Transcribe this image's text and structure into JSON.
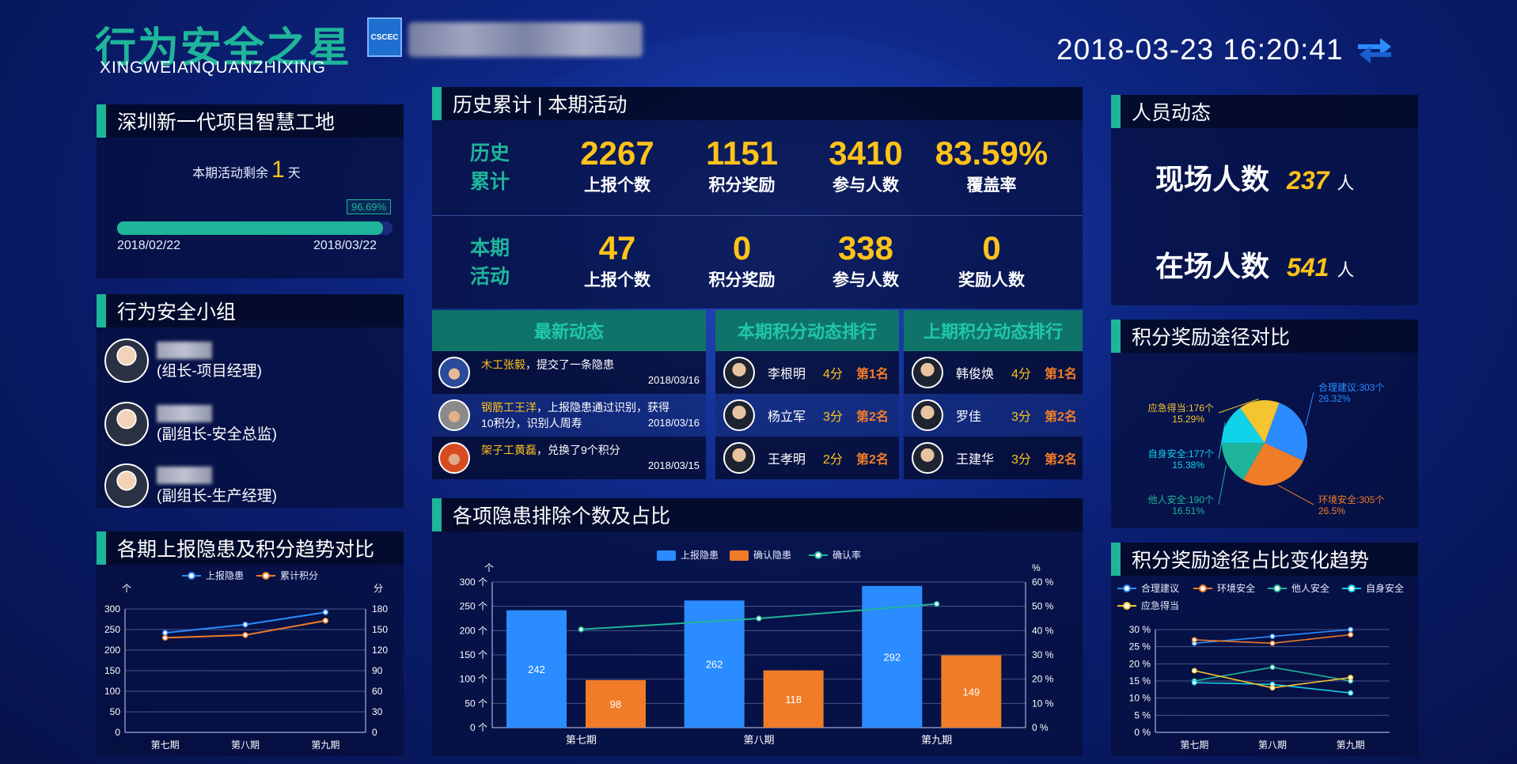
{
  "header": {
    "title": "行为安全之星",
    "subtitle": "XINGWEIANQUANZHIXING",
    "logo_text": "CSCEC",
    "datetime": "2018-03-23 16:20:41"
  },
  "project": {
    "title": "深圳新一代项目智慧工地",
    "remaining_prefix": "本期活动剩余",
    "remaining_days": "1",
    "remaining_suffix": "天",
    "progress_pct": "96.69%",
    "progress_value": 0.9669,
    "start_date": "2018/02/22",
    "end_date": "2018/03/22"
  },
  "group": {
    "title": "行为安全小组",
    "members": [
      {
        "role": "(组长-项目经理)"
      },
      {
        "role": "(副组长-安全总监)"
      },
      {
        "role": "(副组长-生产经理)"
      }
    ]
  },
  "history": {
    "title": "历史累计 | 本期活动",
    "hist_label_1": "历史",
    "hist_label_2": "累计",
    "hist_stats": [
      {
        "value": "2267",
        "label": "上报个数"
      },
      {
        "value": "1151",
        "label": "积分奖励"
      },
      {
        "value": "3410",
        "label": "参与人数"
      },
      {
        "value": "83.59%",
        "label": "覆盖率"
      }
    ],
    "cur_label_1": "本期",
    "cur_label_2": "活动",
    "cur_stats": [
      {
        "value": "47",
        "label": "上报个数"
      },
      {
        "value": "0",
        "label": "积分奖励"
      },
      {
        "value": "338",
        "label": "参与人数"
      },
      {
        "value": "0",
        "label": "奖励人数"
      }
    ]
  },
  "news": {
    "title": "最新动态",
    "items": [
      {
        "who": "木工张毅",
        "text": "，提交了一条隐患",
        "text2": "",
        "date": "2018/03/16"
      },
      {
        "who": "钢筋工王洋",
        "text": "，上报隐患通过识别，获得",
        "text2": "10积分，识别人周寿",
        "date": "2018/03/16"
      },
      {
        "who": "架子工黄磊",
        "text": "，兑换了9个积分",
        "text2": "",
        "date": "2018/03/15"
      }
    ]
  },
  "rank_current": {
    "title": "本期积分动态排行",
    "rows": [
      {
        "name": "李根明",
        "score": "4分",
        "rank": "第1名"
      },
      {
        "name": "杨立军",
        "score": "3分",
        "rank": "第2名"
      },
      {
        "name": "王孝明",
        "score": "2分",
        "rank": "第2名"
      }
    ]
  },
  "rank_previous": {
    "title": "上期积分动态排行",
    "rows": [
      {
        "name": "韩俊焕",
        "score": "4分",
        "rank": "第1名"
      },
      {
        "name": "罗佳",
        "score": "3分",
        "rank": "第2名"
      },
      {
        "name": "王建华",
        "score": "3分",
        "rank": "第2名"
      }
    ]
  },
  "personnel": {
    "title": "人员动态",
    "onsite_label": "现场人数",
    "onsite_value": "237",
    "inplace_label": "在场人数",
    "inplace_value": "541",
    "unit": "人"
  },
  "colors": {
    "accent": "#1fb59a",
    "highlight": "#ffc21a",
    "blue_series": "#2a8cff",
    "orange_series": "#f07c28",
    "green_series": "#1fb59a",
    "cyan_series": "#10d2e8",
    "yellow_series": "#f5c431"
  },
  "chart_data": [
    {
      "id": "trend",
      "type": "line",
      "title": "各期上报隐患及积分趋势对比",
      "categories": [
        "第七期",
        "第八期",
        "第九期"
      ],
      "series": [
        {
          "name": "上报隐患",
          "axis": "left",
          "values": [
            242,
            262,
            292
          ],
          "color": "#2a8cff"
        },
        {
          "name": "累计积分",
          "axis": "right",
          "values": [
            138,
            142,
            163
          ],
          "color": "#f07c28"
        }
      ],
      "ylabel_left": "个",
      "ylabel_right": "分",
      "ylim_left": [
        0,
        300
      ],
      "yticks_left": [
        0,
        50,
        100,
        150,
        200,
        250,
        300
      ],
      "ylim_right": [
        0,
        180
      ],
      "yticks_right": [
        0,
        30,
        60,
        90,
        120,
        150,
        180
      ],
      "legend": "top-center",
      "grid": true
    },
    {
      "id": "hazards",
      "type": "bar",
      "title": "各项隐患排除个数及占比",
      "categories": [
        "第七期",
        "第八期",
        "第九期"
      ],
      "series": [
        {
          "name": "上报隐患",
          "type": "bar",
          "values": [
            242,
            262,
            292
          ],
          "color": "#2a8cff"
        },
        {
          "name": "确认隐患",
          "type": "bar",
          "values": [
            98,
            118,
            149
          ],
          "color": "#f07c28"
        },
        {
          "name": "确认率",
          "type": "line",
          "axis": "right",
          "values": [
            40.5,
            45,
            51
          ],
          "color": "#1fb59a"
        }
      ],
      "ylabel_left": "个",
      "ylabel_right": "%",
      "ylim_left": [
        0,
        300
      ],
      "yticks_left": [
        "0 个",
        "50 个",
        "100 个",
        "150 个",
        "200 个",
        "250 个",
        "300 个"
      ],
      "ylim_right": [
        0,
        60
      ],
      "yticks_right": [
        "0 %",
        "10 %",
        "20 %",
        "30 %",
        "40 %",
        "50 %",
        "60 %"
      ],
      "legend": "top-center",
      "grid": true
    },
    {
      "id": "pie",
      "type": "pie",
      "title": "积分奖励途径对比",
      "slices": [
        {
          "name": "合理建议",
          "value": 303,
          "pct": "26.32%",
          "color": "#2a8cff"
        },
        {
          "name": "环境安全",
          "value": 305,
          "pct": "26.5%",
          "color": "#f07c28"
        },
        {
          "name": "他人安全",
          "value": 190,
          "pct": "16.51%",
          "color": "#1fb59a"
        },
        {
          "name": "自身安全",
          "value": 177,
          "pct": "15.38%",
          "color": "#10d2e8"
        },
        {
          "name": "应急得当",
          "value": 176,
          "pct": "15.29%",
          "color": "#f5c431"
        }
      ],
      "labels": [
        {
          "text": "合理建议:303个",
          "pct": "26.32%"
        },
        {
          "text": "环境安全:305个",
          "pct": "26.5%"
        },
        {
          "text": "他人安全:190个",
          "pct": "16.51%"
        },
        {
          "text": "自身安全:177个",
          "pct": "15.38%"
        },
        {
          "text": "应急得当:176个",
          "pct": "15.29%"
        }
      ]
    },
    {
      "id": "ratio",
      "type": "line",
      "title": "积分奖励途径占比变化趋势",
      "categories": [
        "第七期",
        "第八期",
        "第九期"
      ],
      "series": [
        {
          "name": "合理建议",
          "values": [
            26,
            28,
            30
          ],
          "color": "#2a8cff"
        },
        {
          "name": "环境安全",
          "values": [
            27,
            26,
            28.5
          ],
          "color": "#f07c28"
        },
        {
          "name": "他人安全",
          "values": [
            15,
            19,
            15
          ],
          "color": "#1fb59a"
        },
        {
          "name": "自身安全",
          "values": [
            14.5,
            14,
            11.5
          ],
          "color": "#10d2e8"
        },
        {
          "name": "应急得当",
          "values": [
            18,
            13,
            16
          ],
          "color": "#f5c431"
        }
      ],
      "ylim": [
        0,
        30
      ],
      "yticks": [
        "0 %",
        "5 %",
        "10 %",
        "15 %",
        "20 %",
        "25 %",
        "30 %"
      ],
      "legend": "top-left",
      "grid": true
    }
  ]
}
